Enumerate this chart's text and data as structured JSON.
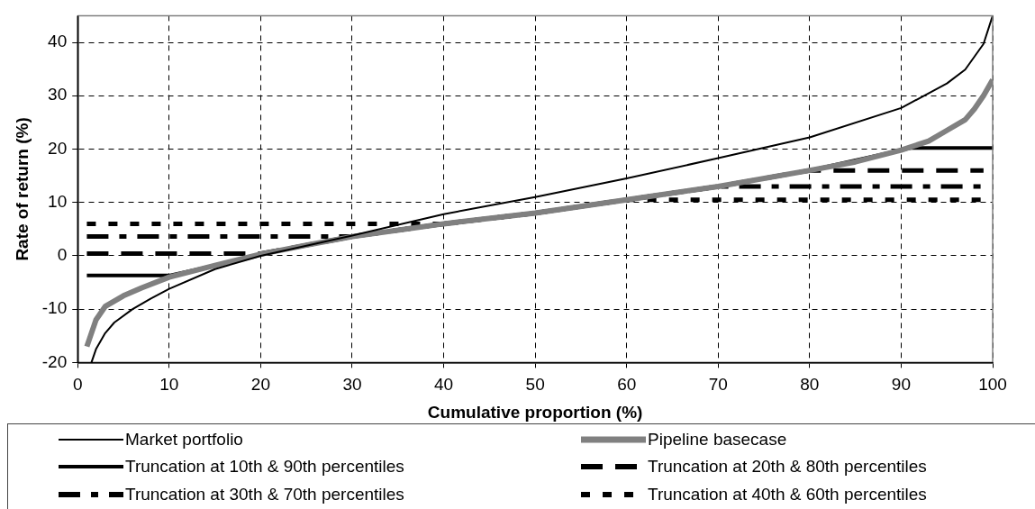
{
  "chart_data": {
    "type": "line",
    "xlabel": "Cumulative proportion (%)",
    "ylabel": "Rate of return (%)",
    "xlim": [
      0,
      100
    ],
    "xticks": [
      0,
      10,
      20,
      30,
      40,
      50,
      60,
      70,
      80,
      90,
      100
    ],
    "ylim": [
      -20,
      45
    ],
    "yticks": [
      -20,
      -10,
      0,
      10,
      20,
      30,
      40
    ],
    "grid": true,
    "legend": "bottom",
    "marker": "none",
    "series": [
      {
        "name": "Market portfolio",
        "color": "#000000",
        "line_style": "solid",
        "x": [
          1.5,
          2,
          3,
          4,
          6,
          8,
          10,
          15,
          20,
          30,
          40,
          50,
          60,
          70,
          80,
          90,
          95,
          97,
          99,
          100
        ],
        "values": [
          -20,
          -17.5,
          -14.5,
          -12.5,
          -10,
          -8,
          -6.2,
          -2.5,
          0,
          3.8,
          7.8,
          11,
          14.5,
          18.3,
          22.2,
          27.7,
          32.3,
          34.9,
          39.7,
          45
        ]
      },
      {
        "name": "Pipeline basecase",
        "color": "#808080",
        "line_style": "solid",
        "x": [
          1,
          2,
          3,
          5,
          7,
          10,
          15,
          20,
          25,
          30,
          40,
          50,
          60,
          70,
          80,
          85,
          90,
          93,
          95,
          97,
          98,
          99,
          100
        ],
        "values": [
          -17,
          -12,
          -9.5,
          -7.5,
          -6,
          -4,
          -1.8,
          0.3,
          2,
          3.6,
          6,
          8,
          10.5,
          13,
          16,
          17.6,
          19.8,
          21.5,
          23.5,
          25.5,
          27.5,
          30,
          33
        ]
      },
      {
        "name": "Truncation at 10th & 90th percentiles",
        "color": "#000000",
        "line_style": "solid",
        "x": [
          1,
          10,
          15,
          20,
          25,
          30,
          40,
          50,
          60,
          70,
          80,
          90,
          91,
          100
        ],
        "values": [
          -3.7,
          -3.7,
          -1.8,
          0.3,
          2,
          3.6,
          6,
          8,
          10.5,
          13,
          16,
          19.8,
          20.2,
          20.2
        ]
      },
      {
        "name": "Truncation at 20th & 80th percentiles",
        "color": "#000000",
        "line_style": "dashed",
        "x": [
          1,
          20,
          25,
          30,
          40,
          50,
          60,
          70,
          80,
          99
        ],
        "values": [
          0.4,
          0.4,
          2,
          3.6,
          6,
          8,
          10.5,
          13,
          16,
          16
        ]
      },
      {
        "name": "Truncation at 30th & 70th percentiles",
        "color": "#000000",
        "line_style": "dashed",
        "x": [
          1,
          30,
          40,
          50,
          60,
          70,
          99
        ],
        "values": [
          3.6,
          3.6,
          6,
          8,
          10.5,
          13,
          13
        ]
      },
      {
        "name": "Truncation at 40th & 60th percentiles",
        "color": "#000000",
        "line_style": "dotted",
        "x": [
          1,
          40,
          50,
          60,
          99
        ],
        "values": [
          6,
          6,
          8,
          10.5,
          10.5
        ]
      }
    ]
  }
}
